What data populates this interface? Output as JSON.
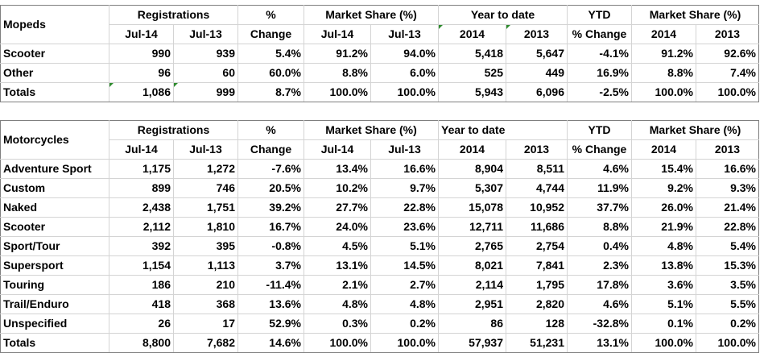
{
  "mopeds": {
    "title": "Mopeds",
    "h1": {
      "registrations": "Registrations",
      "pct": "%",
      "market_share": "Market Share (%)",
      "ytd_label": "Year to date",
      "ytd_pct": "YTD",
      "ytd_share": "Market Share (%)"
    },
    "h2": [
      "Jul-14",
      "Jul-13",
      "Change",
      "Jul-14",
      "Jul-13",
      "2014",
      "2013",
      "% Change",
      "2014",
      "2013"
    ],
    "rows": [
      {
        "label": "Scooter",
        "v": [
          "990",
          "939",
          "5.4%",
          "91.2%",
          "94.0%",
          "5,418",
          "5,647",
          "-4.1%",
          "91.2%",
          "92.6%"
        ]
      },
      {
        "label": "Other",
        "v": [
          "96",
          "60",
          "60.0%",
          "8.8%",
          "6.0%",
          "525",
          "449",
          "16.9%",
          "8.8%",
          "7.4%"
        ]
      }
    ],
    "totals": {
      "label": "Totals",
      "v": [
        "1,086",
        "999",
        "8.7%",
        "100.0%",
        "100.0%",
        "5,943",
        "6,096",
        "-2.5%",
        "100.0%",
        "100.0%"
      ]
    }
  },
  "motorcycles": {
    "title": "Motorcycles",
    "h1": {
      "registrations": "Registrations",
      "pct": "%",
      "market_share": "Market Share (%)",
      "ytd_label": "Year to date",
      "ytd_pct": "YTD",
      "ytd_share": "Market Share (%)"
    },
    "h2": [
      "Jul-14",
      "Jul-13",
      "Change",
      "Jul-14",
      "Jul-13",
      "2014",
      "2013",
      "% Change",
      "2014",
      "2013"
    ],
    "rows": [
      {
        "label": "Adventure Sport",
        "v": [
          "1,175",
          "1,272",
          "-7.6%",
          "13.4%",
          "16.6%",
          "8,904",
          "8,511",
          "4.6%",
          "15.4%",
          "16.6%"
        ]
      },
      {
        "label": "Custom",
        "v": [
          "899",
          "746",
          "20.5%",
          "10.2%",
          "9.7%",
          "5,307",
          "4,744",
          "11.9%",
          "9.2%",
          "9.3%"
        ]
      },
      {
        "label": "Naked",
        "v": [
          "2,438",
          "1,751",
          "39.2%",
          "27.7%",
          "22.8%",
          "15,078",
          "10,952",
          "37.7%",
          "26.0%",
          "21.4%"
        ]
      },
      {
        "label": "Scooter",
        "v": [
          "2,112",
          "1,810",
          "16.7%",
          "24.0%",
          "23.6%",
          "12,711",
          "11,686",
          "8.8%",
          "21.9%",
          "22.8%"
        ]
      },
      {
        "label": "Sport/Tour",
        "v": [
          "392",
          "395",
          "-0.8%",
          "4.5%",
          "5.1%",
          "2,765",
          "2,754",
          "0.4%",
          "4.8%",
          "5.4%"
        ]
      },
      {
        "label": "Supersport",
        "v": [
          "1,154",
          "1,113",
          "3.7%",
          "13.1%",
          "14.5%",
          "8,021",
          "7,841",
          "2.3%",
          "13.8%",
          "15.3%"
        ]
      },
      {
        "label": "Touring",
        "v": [
          "186",
          "210",
          "-11.4%",
          "2.1%",
          "2.7%",
          "2,114",
          "1,795",
          "17.8%",
          "3.6%",
          "3.5%"
        ]
      },
      {
        "label": "Trail/Enduro",
        "v": [
          "418",
          "368",
          "13.6%",
          "4.8%",
          "4.8%",
          "2,951",
          "2,820",
          "4.6%",
          "5.1%",
          "5.5%"
        ]
      },
      {
        "label": "Unspecified",
        "v": [
          "26",
          "17",
          "52.9%",
          "0.3%",
          "0.2%",
          "86",
          "128",
          "-32.8%",
          "0.1%",
          "0.2%"
        ]
      }
    ],
    "totals": {
      "label": "Totals",
      "v": [
        "8,800",
        "7,682",
        "14.6%",
        "100.0%",
        "100.0%",
        "57,937",
        "51,231",
        "13.1%",
        "100.0%",
        "100.0%"
      ]
    }
  }
}
